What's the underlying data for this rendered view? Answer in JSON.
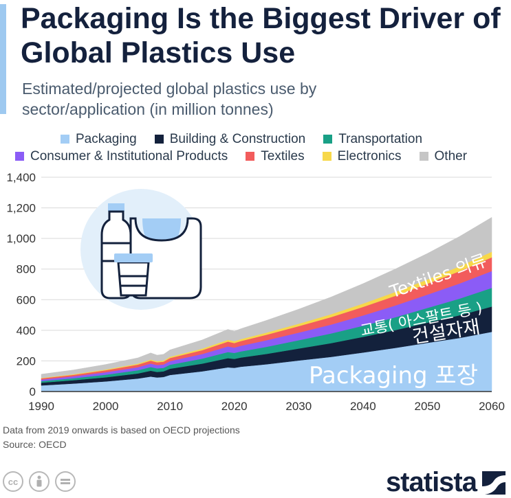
{
  "title": "Packaging Is the Biggest Driver of Global Plastics Use",
  "subtitle": "Estimated/projected global plastics use by sector/application (in million tonnes)",
  "legend": [
    {
      "name": "Packaging",
      "color": "#a3cdf5"
    },
    {
      "name": "Building & Construction",
      "color": "#13213c"
    },
    {
      "name": "Transportation",
      "color": "#19a086"
    },
    {
      "name": "Consumer & Institutional Products",
      "color": "#8b5cf6"
    },
    {
      "name": "Textiles",
      "color": "#f25c5c"
    },
    {
      "name": "Electronics",
      "color": "#f7d84a"
    },
    {
      "name": "Other",
      "color": "#c6c6c6"
    }
  ],
  "chart_data": {
    "type": "area",
    "stacked": true,
    "x": [
      1990,
      1995,
      2000,
      2005,
      2007,
      2008,
      2009,
      2010,
      2015,
      2019,
      2020,
      2021,
      2025,
      2030,
      2035,
      2040,
      2045,
      2050,
      2055,
      2060
    ],
    "series": [
      {
        "name": "Packaging",
        "color": "#a3cdf5",
        "values": [
          40,
          52,
          66,
          85,
          98,
          92,
          95,
          108,
          132,
          158,
          155,
          162,
          178,
          203,
          226,
          255,
          285,
          318,
          350,
          390
        ]
      },
      {
        "name": "Building & Construction",
        "color": "#13213c",
        "values": [
          18,
          22,
          27,
          33,
          38,
          36,
          37,
          41,
          50,
          60,
          58,
          60,
          68,
          78,
          90,
          102,
          116,
          132,
          148,
          165
        ]
      },
      {
        "name": "Transportation",
        "color": "#19a086",
        "values": [
          10,
          13,
          17,
          21,
          24,
          23,
          23,
          26,
          33,
          40,
          39,
          40,
          46,
          54,
          63,
          73,
          84,
          96,
          109,
          122
        ]
      },
      {
        "name": "Consumer & Institutional Products",
        "color": "#8b5cf6",
        "values": [
          10,
          12,
          16,
          20,
          23,
          22,
          22,
          24,
          30,
          37,
          35,
          37,
          43,
          50,
          58,
          67,
          77,
          87,
          99,
          110
        ]
      },
      {
        "name": "Textiles",
        "color": "#f25c5c",
        "values": [
          8,
          10,
          13,
          17,
          19,
          18,
          18,
          20,
          25,
          31,
          30,
          31,
          36,
          42,
          49,
          56,
          63,
          71,
          80,
          90
        ]
      },
      {
        "name": "Electronics",
        "color": "#f7d84a",
        "values": [
          3,
          4,
          5,
          6,
          7,
          7,
          7,
          8,
          10,
          12,
          12,
          12,
          14,
          16,
          19,
          22,
          25,
          28,
          32,
          36
        ]
      },
      {
        "name": "Other",
        "color": "#c6c6c6",
        "values": [
          24,
          28,
          33,
          38,
          43,
          40,
          41,
          45,
          57,
          68,
          65,
          68,
          80,
          95,
          112,
          130,
          150,
          170,
          195,
          225
        ]
      }
    ],
    "xlim": [
      1990,
      2060
    ],
    "ylim": [
      0,
      1400
    ],
    "xticks": [
      "1990",
      "2000",
      "2010",
      "2020",
      "2030",
      "2040",
      "2050",
      "2060"
    ],
    "yticks": [
      "0",
      "200",
      "400",
      "600",
      "800",
      "1,000",
      "1,200",
      "1,400"
    ],
    "annotations": [
      {
        "text": "Textiles 의류",
        "color": "#ffffff"
      },
      {
        "text": "교통( 아스팔트 등 )",
        "color": "#ffffff"
      },
      {
        "text": "건설자재",
        "color": "#ffffff"
      },
      {
        "text": "Packaging 포장",
        "color": "#ffffff"
      }
    ]
  },
  "notes": {
    "line1": "Data from 2019 onwards is based on OECD projections",
    "line2": "Source: OECD"
  },
  "footer": {
    "cc_icons": [
      "creative-commons-icon",
      "attribution-icon",
      "no-derivatives-icon"
    ],
    "brand": "statista"
  }
}
